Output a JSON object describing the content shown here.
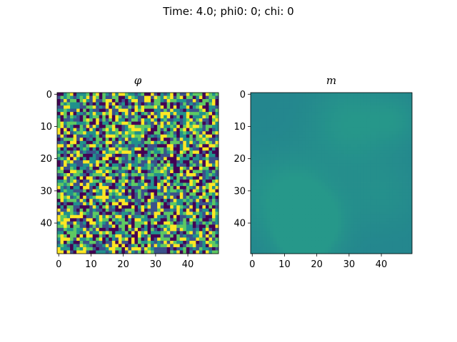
{
  "figure": {
    "suptitle": "Time: 4.0; phi0: 0; chi: 0"
  },
  "chart_data": [
    {
      "type": "heatmap",
      "title": "φ",
      "colormap": "viridis",
      "grid": false,
      "size": [
        50,
        50
      ],
      "xticks": [
        "0",
        "10",
        "20",
        "30",
        "40"
      ],
      "yticks": [
        "0",
        "10",
        "20",
        "30",
        "40"
      ],
      "xlim": [
        -0.5,
        49.5
      ],
      "ylim": [
        49.5,
        -0.5
      ],
      "value_range": [
        -1,
        1
      ],
      "description": "random field: each cell independently random"
    },
    {
      "type": "heatmap",
      "title": "m",
      "colormap": "viridis",
      "grid": false,
      "size": [
        50,
        50
      ],
      "xticks": [
        "0",
        "10",
        "20",
        "30",
        "40"
      ],
      "yticks": [
        "0",
        "10",
        "20",
        "30",
        "40"
      ],
      "xlim": [
        -0.5,
        49.5
      ],
      "ylim": [
        49.5,
        -0.5
      ],
      "value_range": [
        -1,
        1
      ],
      "description": "smooth field: near-uniform teal with gentle blotches"
    }
  ],
  "colors": {
    "viridis": [
      "#440154",
      "#3b528b",
      "#21918c",
      "#5ec962",
      "#fde725"
    ],
    "m_base": "#24868e",
    "m_light": "#26988a"
  }
}
